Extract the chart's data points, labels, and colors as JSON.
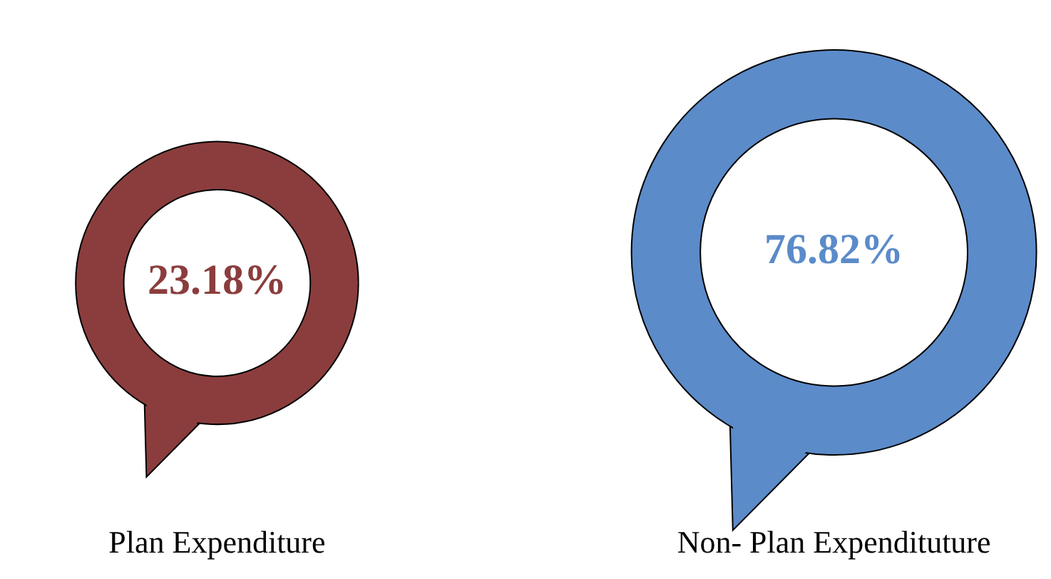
{
  "chart_data": {
    "type": "other",
    "categories": [
      "Plan Expenditure",
      "Non- Plan Expendituture"
    ],
    "values": [
      23.18,
      76.82
    ],
    "value_labels": [
      "23.18%",
      "76.82%"
    ],
    "colors": [
      "#8b3d3d",
      "#5b8bc9"
    ]
  }
}
